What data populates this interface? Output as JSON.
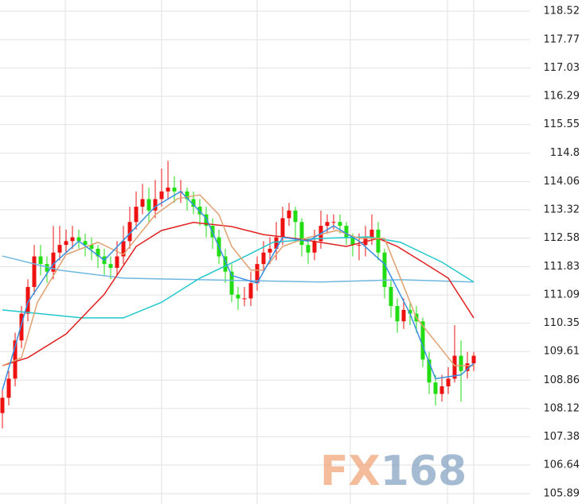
{
  "chart_data": {
    "type": "candlestick",
    "up_color": "#ee1111",
    "down_color": "#22dd11",
    "ylim": [
      105.62,
      118.81
    ],
    "yticks": [
      105.89,
      106.64,
      107.38,
      108.12,
      108.86,
      109.61,
      110.35,
      111.09,
      111.83,
      112.58,
      113.32,
      114.06,
      114.8,
      115.55,
      116.29,
      117.03,
      117.77,
      118.52
    ],
    "grid": true,
    "open": [
      108.0,
      108.4,
      108.9,
      109.9,
      110.6,
      111.3,
      112.1,
      111.9,
      111.7,
      112.2,
      112.4,
      112.5,
      112.6,
      112.5,
      112.4,
      112.3,
      112.1,
      111.9,
      111.8,
      112.1,
      112.5,
      113.0,
      113.4,
      113.6,
      113.3,
      113.6,
      113.8,
      113.9,
      113.8,
      113.8,
      113.6,
      113.4,
      113.2,
      112.9,
      112.6,
      112.1,
      111.7,
      111.1,
      111.0,
      111.0,
      111.4,
      111.9,
      112.2,
      112.3,
      112.6,
      113.1,
      113.3,
      113.0,
      112.4,
      112.2,
      112.5,
      112.9,
      113.0,
      113.0,
      112.9,
      112.6,
      112.4,
      112.4,
      112.6,
      112.8,
      112.2,
      111.3,
      110.8,
      110.4,
      110.7,
      110.6,
      110.4,
      109.4,
      108.8,
      108.5,
      108.7,
      108.9,
      109.5,
      109.1,
      109.3
    ],
    "high": [
      108.6,
      109.1,
      110.1,
      110.8,
      111.5,
      112.4,
      112.4,
      112.1,
      112.9,
      112.9,
      112.8,
      112.9,
      112.8,
      112.7,
      112.6,
      112.4,
      112.3,
      112.1,
      112.5,
      112.9,
      113.4,
      113.8,
      114.0,
      113.9,
      114.1,
      114.4,
      114.6,
      114.2,
      114.1,
      113.9,
      113.8,
      113.6,
      113.4,
      113.1,
      112.8,
      112.3,
      111.9,
      111.3,
      111.3,
      111.7,
      112.1,
      112.5,
      112.6,
      113.0,
      113.4,
      113.5,
      113.4,
      113.1,
      112.6,
      112.8,
      113.3,
      113.2,
      113.2,
      113.2,
      113.0,
      112.7,
      112.7,
      112.9,
      113.2,
      113.0,
      112.3,
      111.5,
      111.0,
      111.0,
      110.9,
      110.8,
      110.5,
      109.6,
      109.0,
      109.0,
      109.2,
      110.3,
      109.9,
      109.6,
      109.6
    ],
    "low": [
      107.6,
      108.2,
      108.7,
      109.7,
      110.4,
      111.1,
      111.6,
      111.4,
      111.5,
      112.0,
      112.2,
      112.3,
      112.3,
      112.1,
      112.0,
      111.8,
      111.6,
      111.5,
      111.6,
      111.9,
      112.3,
      112.8,
      113.2,
      113.0,
      113.1,
      113.4,
      113.6,
      113.5,
      113.5,
      113.3,
      113.2,
      112.9,
      112.6,
      112.3,
      111.9,
      111.4,
      110.9,
      110.7,
      110.8,
      110.8,
      111.2,
      111.7,
      111.9,
      112.0,
      112.4,
      112.9,
      112.5,
      112.1,
      111.9,
      112.0,
      112.3,
      112.7,
      112.8,
      112.7,
      112.4,
      112.1,
      112.0,
      112.1,
      112.4,
      112.0,
      111.0,
      110.5,
      110.1,
      110.2,
      110.3,
      110.1,
      109.2,
      108.5,
      108.2,
      108.3,
      108.5,
      108.8,
      108.3,
      108.9,
      109.1
    ],
    "close": [
      108.4,
      108.9,
      109.9,
      110.6,
      111.3,
      112.1,
      111.9,
      111.7,
      112.2,
      112.4,
      112.5,
      112.6,
      112.5,
      112.4,
      112.3,
      112.1,
      111.9,
      111.8,
      112.1,
      112.5,
      113.0,
      113.4,
      113.6,
      113.3,
      113.6,
      113.8,
      113.9,
      113.8,
      113.8,
      113.6,
      113.4,
      113.2,
      112.9,
      112.6,
      112.1,
      111.7,
      111.1,
      111.0,
      111.0,
      111.4,
      111.9,
      112.2,
      112.3,
      112.6,
      113.1,
      113.3,
      113.0,
      112.4,
      112.2,
      112.5,
      112.9,
      113.0,
      113.0,
      112.9,
      112.6,
      112.4,
      112.4,
      112.6,
      112.8,
      112.2,
      111.3,
      110.8,
      110.4,
      110.7,
      110.6,
      110.4,
      109.4,
      108.8,
      108.5,
      108.7,
      108.9,
      109.5,
      109.1,
      109.3,
      109.5
    ],
    "lines": [
      {
        "color": "#6fb6e0",
        "x": [
          0,
          9,
          19,
          31,
          50,
          62.5,
          74
        ],
        "values": [
          112.11,
          111.74,
          111.53,
          111.49,
          111.43,
          111.49,
          111.43
        ]
      },
      {
        "color": "#22c7cc",
        "x": [
          0,
          12.5,
          19,
          25,
          31,
          37.5,
          42.5,
          50,
          57.5,
          62.5,
          69,
          74
        ],
        "values": [
          110.7,
          110.49,
          110.49,
          110.9,
          111.53,
          112.05,
          112.47,
          112.57,
          112.61,
          112.47,
          111.95,
          111.43
        ]
      },
      {
        "color": "#e02020",
        "x": [
          0,
          4,
          10,
          16,
          21,
          25,
          30,
          36,
          41,
          46,
          54,
          59,
          62,
          66,
          70,
          74
        ],
        "values": [
          109.24,
          109.45,
          110.07,
          111.11,
          112.36,
          112.78,
          112.99,
          112.88,
          112.67,
          112.57,
          112.36,
          112.57,
          112.36,
          111.95,
          111.53,
          110.49
        ]
      },
      {
        "color": "#e0a070",
        "x": [
          0,
          3,
          5.5,
          10,
          15,
          19,
          21,
          24,
          27.5,
          31,
          34,
          36,
          39,
          41,
          44,
          47.5,
          52.5,
          56,
          60,
          62.5,
          65,
          69,
          71,
          74
        ],
        "values": [
          109.24,
          109.45,
          110.9,
          112.15,
          112.47,
          112.15,
          112.57,
          113.19,
          113.61,
          113.71,
          113.19,
          112.36,
          111.74,
          111.74,
          112.36,
          112.57,
          112.78,
          112.57,
          112.57,
          111.53,
          110.49,
          109.66,
          109.24,
          109.24
        ]
      },
      {
        "color": "#3a8fe0",
        "x": [
          0,
          4,
          8,
          12,
          16,
          20,
          24,
          28,
          32,
          36,
          40,
          44,
          48,
          52,
          56,
          60,
          64,
          68,
          72,
          74
        ],
        "values": [
          108.6,
          110.9,
          111.9,
          112.5,
          112.0,
          112.7,
          113.4,
          113.8,
          113.1,
          111.6,
          111.4,
          112.6,
          112.5,
          112.9,
          112.5,
          111.9,
          110.6,
          108.9,
          109.0,
          109.3
        ]
      }
    ],
    "watermark": [
      "FX",
      "168"
    ]
  }
}
